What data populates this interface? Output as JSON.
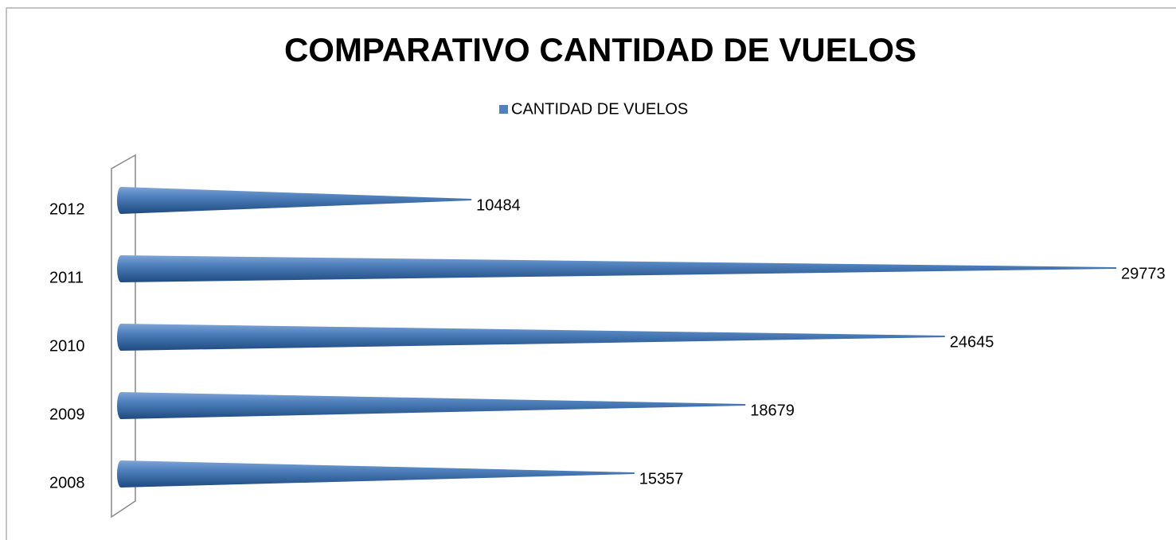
{
  "chart_data": {
    "type": "bar",
    "orientation": "horizontal",
    "title": "COMPARATIVO CANTIDAD DE VUELOS",
    "categories": [
      "2008",
      "2009",
      "2010",
      "2011",
      "2012"
    ],
    "series": [
      {
        "name": "CANTIDAD DE VUELOS",
        "color": "#4f81bd",
        "values": [
          15357,
          18679,
          24645,
          29773,
          10484
        ]
      }
    ],
    "legend": "top"
  }
}
